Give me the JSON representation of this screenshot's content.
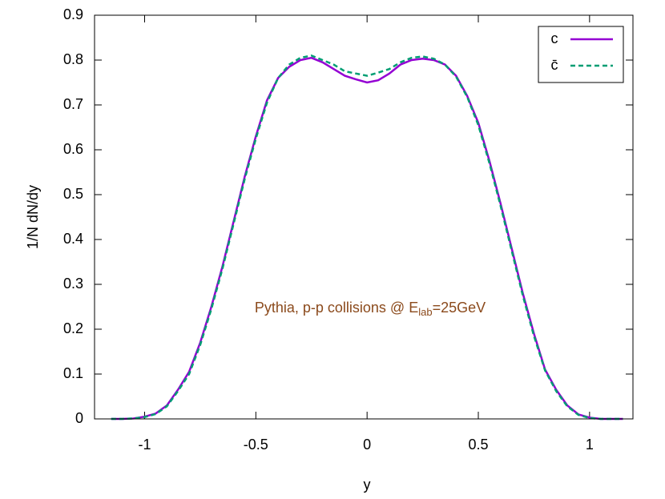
{
  "chart_data": {
    "type": "line",
    "x_label": "y",
    "y_label": "1/N dN/dy",
    "annotation": {
      "main": "Pythia, p-p collisions @ E",
      "sub": "lab",
      "tail": "=25GeV",
      "color": "#8b4a1c"
    },
    "x": [
      -1.15,
      -1.1,
      -1.05,
      -1.0,
      -0.95,
      -0.9,
      -0.85,
      -0.8,
      -0.75,
      -0.7,
      -0.65,
      -0.6,
      -0.55,
      -0.5,
      -0.45,
      -0.4,
      -0.35,
      -0.3,
      -0.25,
      -0.2,
      -0.15,
      -0.1,
      -0.05,
      0,
      0.05,
      0.1,
      0.15,
      0.2,
      0.25,
      0.3,
      0.35,
      0.4,
      0.45,
      0.5,
      0.55,
      0.6,
      0.65,
      0.7,
      0.75,
      0.8,
      0.85,
      0.9,
      0.95,
      1.0,
      1.05,
      1.1,
      1.15
    ],
    "series": [
      {
        "name": "c",
        "color": "#9400d3",
        "dash": false,
        "values": [
          0,
          0,
          0.001,
          0.005,
          0.012,
          0.03,
          0.065,
          0.105,
          0.17,
          0.25,
          0.34,
          0.44,
          0.54,
          0.63,
          0.71,
          0.76,
          0.785,
          0.8,
          0.805,
          0.795,
          0.78,
          0.765,
          0.757,
          0.75,
          0.755,
          0.77,
          0.79,
          0.8,
          0.803,
          0.8,
          0.79,
          0.765,
          0.72,
          0.66,
          0.575,
          0.48,
          0.38,
          0.28,
          0.19,
          0.11,
          0.065,
          0.03,
          0.01,
          0.003,
          0,
          0,
          0
        ]
      },
      {
        "name": "c̄",
        "color": "#009e73",
        "dash": true,
        "values": [
          0,
          0,
          0.001,
          0.004,
          0.011,
          0.028,
          0.062,
          0.1,
          0.165,
          0.245,
          0.335,
          0.435,
          0.535,
          0.625,
          0.705,
          0.76,
          0.79,
          0.805,
          0.81,
          0.8,
          0.79,
          0.775,
          0.77,
          0.765,
          0.772,
          0.78,
          0.795,
          0.805,
          0.808,
          0.803,
          0.79,
          0.763,
          0.718,
          0.655,
          0.57,
          0.475,
          0.375,
          0.275,
          0.185,
          0.108,
          0.062,
          0.028,
          0.009,
          0.002,
          0,
          0,
          0
        ]
      }
    ],
    "xlim": [
      -1.225,
      1.195
    ],
    "ylim": [
      0,
      0.9
    ],
    "xticks": [
      -1,
      -0.5,
      0,
      0.5,
      1
    ],
    "yticks": [
      0,
      0.1,
      0.2,
      0.3,
      0.4,
      0.5,
      0.6,
      0.7,
      0.8,
      0.9
    ],
    "legend": "top-right"
  }
}
